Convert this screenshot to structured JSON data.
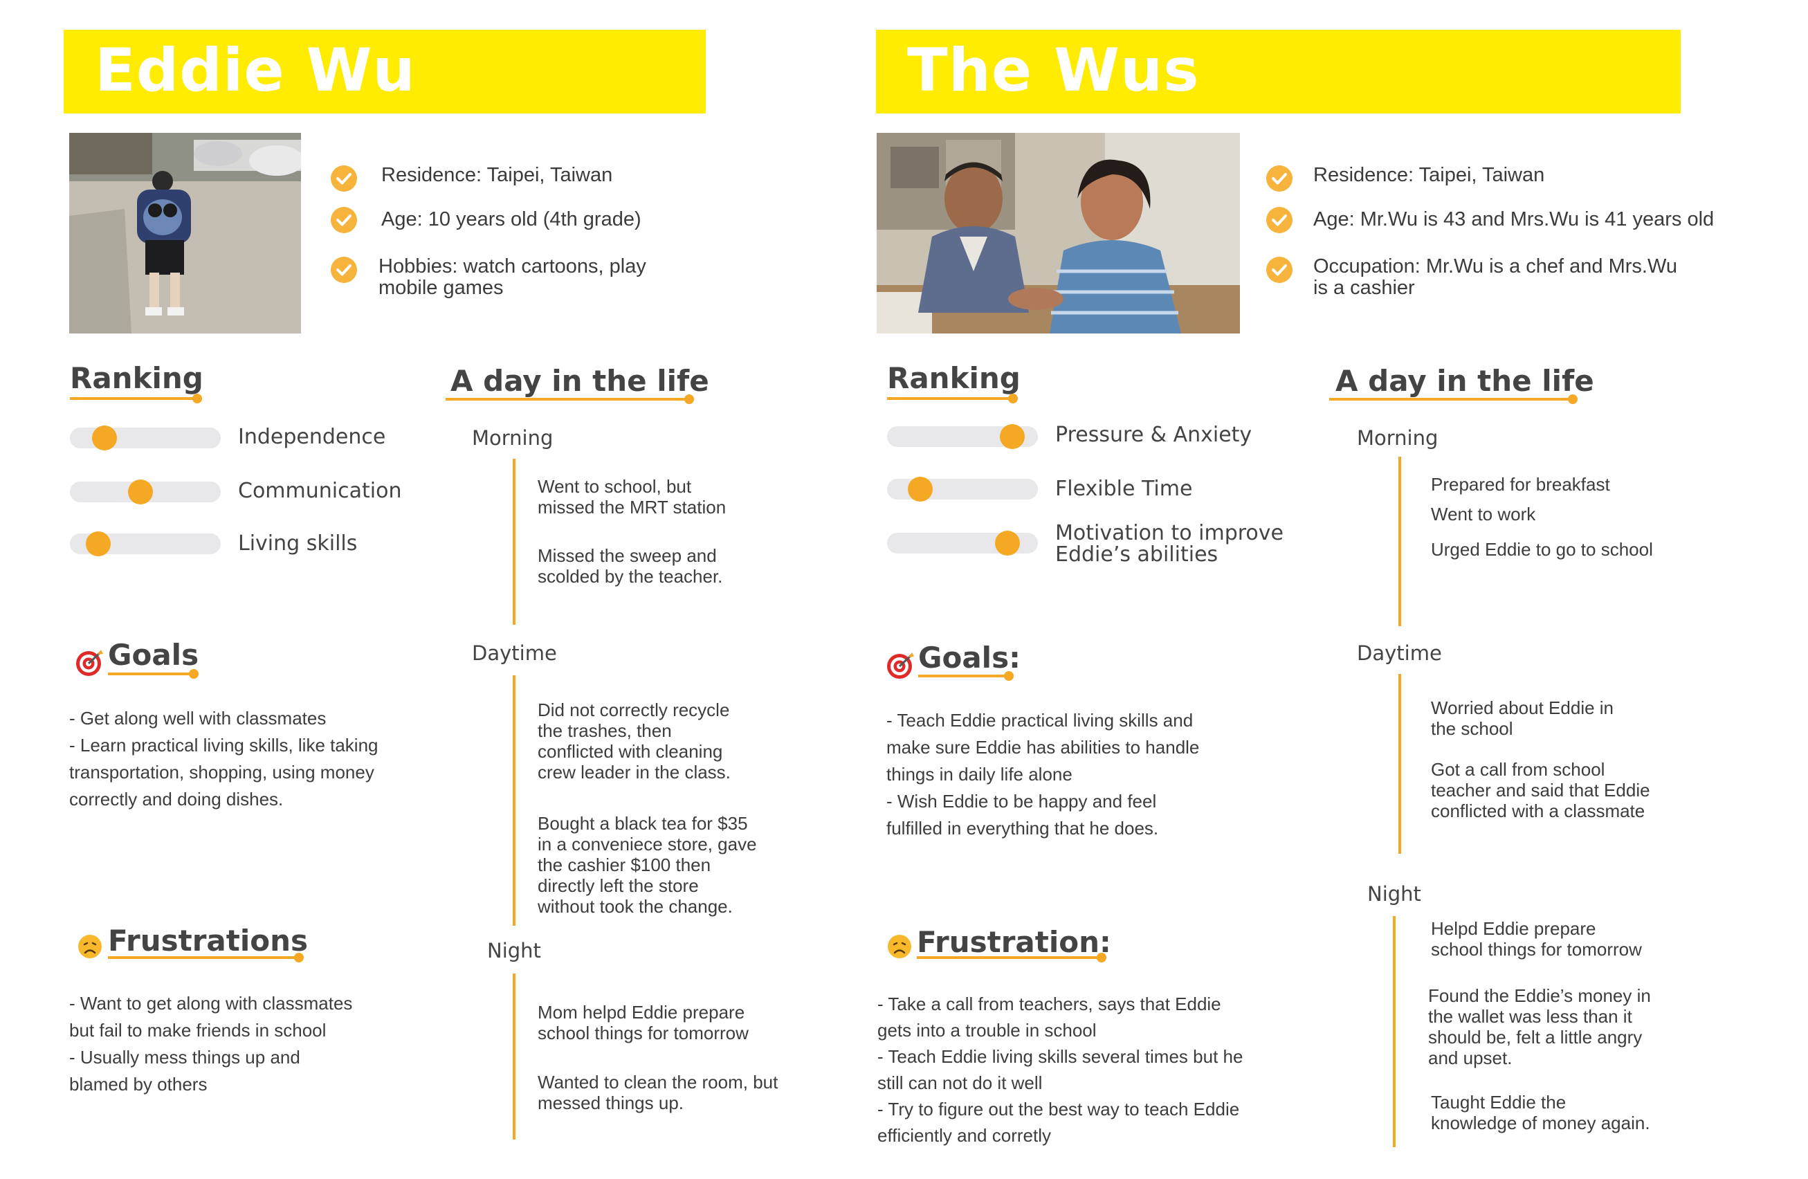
{
  "left": {
    "title": "Eddie Wu",
    "info": [
      {
        "lines": [
          "Residence: Taipei, Taiwan"
        ]
      },
      {
        "lines": [
          "Age: 10 years old (4th grade)"
        ]
      },
      {
        "lines": [
          "Hobbies: watch cartoons, play",
          "mobile games"
        ]
      }
    ],
    "ranking": {
      "heading": "Ranking",
      "items": [
        {
          "label": "Independence",
          "level": 0.23
        },
        {
          "label": "Communication",
          "level": 0.47
        },
        {
          "label": "Living skills",
          "level": 0.19
        }
      ]
    },
    "goals": {
      "heading": "Goals",
      "lines": [
        "- Get along well with classmates",
        "- Learn practical living skills, like taking",
        "transportation, shopping, using money",
        "correctly and doing dishes."
      ]
    },
    "frustrations": {
      "heading": "Frustrations",
      "lines": [
        "- Want to get along with classmates",
        "but fail to make friends in school",
        "- Usually mess things up and",
        "blamed by others"
      ]
    },
    "day": {
      "heading": "A day in the life",
      "periods": [
        {
          "name": "Morning",
          "entries": [
            "Went to school, but\nmissed the MRT station",
            "Missed the sweep and\nscolded by the teacher."
          ]
        },
        {
          "name": "Daytime",
          "entries": [
            "Did not correctly recycle\nthe trashes, then\nconflicted with cleaning\ncrew leader in the class.",
            "Bought a black tea for $35\nin a conveniece store, gave\nthe cashier $100 then\ndirectly left the store\nwithout took the change."
          ]
        },
        {
          "name": "Night",
          "entries": [
            "Mom helpd Eddie prepare\nschool things for tomorrow",
            "Wanted to clean the room, but\nmessed things up."
          ]
        }
      ]
    }
  },
  "right": {
    "title": "The Wus",
    "info": [
      {
        "lines": [
          "Residence: Taipei, Taiwan"
        ]
      },
      {
        "lines": [
          "Age: Mr.Wu is 43 and Mrs.Wu is 41 years old"
        ]
      },
      {
        "lines": [
          "Occupation: Mr.Wu is a chef and Mrs.Wu",
          "is a cashier"
        ]
      }
    ],
    "ranking": {
      "heading": "Ranking",
      "items": [
        {
          "label": "Pressure & Anxiety",
          "level": 0.83
        },
        {
          "label": "Flexible Time",
          "level": 0.22
        },
        {
          "label": "Motivation to improve\nEddie’s abilities",
          "level": 0.8
        }
      ]
    },
    "goals": {
      "heading": "Goals:",
      "lines": [
        "- Teach Eddie practical living skills and",
        "make sure Eddie has abilities to handle",
        "things in daily life alone",
        "-  Wish Eddie to be happy and feel",
        "fulfilled in everything that he does."
      ]
    },
    "frustrations": {
      "heading": "Frustration:",
      "lines": [
        "- Take a call from teachers, says that Eddie",
        "gets into a trouble in school",
        "- Teach Eddie living skills several times but he",
        "still can not do it well",
        "- Try to figure out the best way to teach Eddie",
        "efficiently and corretly"
      ]
    },
    "day": {
      "heading": "A day in the life",
      "periods": [
        {
          "name": "Morning",
          "entries": [
            "Prepared for breakfast",
            "Went to work",
            "Urged Eddie to go to school"
          ]
        },
        {
          "name": "Daytime",
          "entries": [
            "Worried about Eddie in\nthe school",
            "Got a call from school\nteacher and said that Eddie\nconflicted with a classmate"
          ]
        },
        {
          "name": "Night",
          "entries": [
            "Helpd Eddie prepare\nschool things for tomorrow",
            "Found the Eddie’s money in\nthe wallet was less than it\nshould be, felt a little angry\nand upset.",
            "Taught Eddie the\nknowledge of money again."
          ]
        }
      ]
    }
  },
  "colors": {
    "title_bar": "#ffec00",
    "accent": "#f4a823",
    "check": "#f6b43c",
    "track": "#e8e8ea"
  },
  "icons": {
    "check": "checkmark-circle-icon",
    "goal": "target-icon",
    "frustration": "frowning-face-icon"
  }
}
